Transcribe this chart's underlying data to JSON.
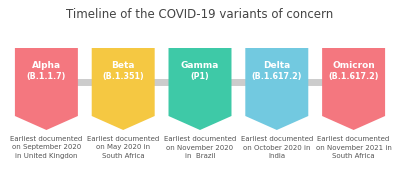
{
  "title": "Timeline of the COVID-19 variants of concern",
  "background_color": "#ffffff",
  "title_fontsize": 8.5,
  "title_color": "#444444",
  "variants": [
    {
      "name": "Alpha",
      "subname": "(B.1.1.7)",
      "color": "#f4777f",
      "caption_lines": [
        "Earliest documented",
        "on September 2020",
        "in United Kingdon"
      ]
    },
    {
      "name": "Beta",
      "subname": "(B.1.351)",
      "color": "#f5c842",
      "caption_lines": [
        "Earliest documented",
        "on May 2020 in",
        "South Africa"
      ]
    },
    {
      "name": "Gamma",
      "subname": "(P1)",
      "color": "#3ec9a7",
      "caption_lines": [
        "Earliest documented",
        "on November 2020",
        "in  Brazil"
      ]
    },
    {
      "name": "Delta",
      "subname": "(B.1.617.2)",
      "color": "#72c9e0",
      "caption_lines": [
        "Earliest documented",
        "on October 2020 in",
        "India"
      ]
    },
    {
      "name": "Omicron",
      "subname": "(B.1.617.2)",
      "color": "#f4777f",
      "caption_lines": [
        "Earliest documented",
        "on November 2021 in",
        "South Africa"
      ]
    }
  ],
  "connector_color": "#cccccc",
  "connector_lw": 5,
  "text_color": "#555555",
  "caption_fontsize": 5.0,
  "name_fontsize": 6.5,
  "subname_fontsize": 5.8
}
